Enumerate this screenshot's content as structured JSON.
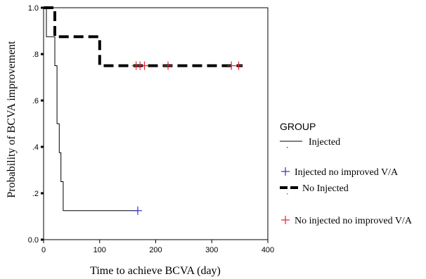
{
  "chart_data": {
    "type": "line",
    "step": true,
    "title": "",
    "xlabel": "Time to achieve BCVA (day)",
    "ylabel": "Probability of  BCVA improvement",
    "xlim": [
      0,
      400
    ],
    "ylim": [
      0,
      1.0
    ],
    "x_ticks": [
      0,
      100,
      200,
      300,
      400
    ],
    "x_tick_labels": [
      "0",
      "100",
      "200",
      "300",
      "400"
    ],
    "y_ticks": [
      0,
      0.2,
      0.4,
      0.6,
      0.8,
      1.0
    ],
    "y_tick_labels": [
      "0.0",
      ".2",
      ".4",
      ".6",
      ".8",
      "1.0"
    ],
    "grid": false,
    "legend_position": "right",
    "legend_title": "GROUP",
    "series": [
      {
        "name": "Injected",
        "style": "thin-solid",
        "color": "#000000",
        "points": [
          [
            0,
            1.0
          ],
          [
            5,
            1.0
          ],
          [
            5,
            0.875
          ],
          [
            20,
            0.875
          ],
          [
            20,
            0.75
          ],
          [
            24,
            0.75
          ],
          [
            24,
            0.5
          ],
          [
            28,
            0.5
          ],
          [
            28,
            0.375
          ],
          [
            31,
            0.375
          ],
          [
            31,
            0.25
          ],
          [
            35,
            0.25
          ],
          [
            35,
            0.125
          ],
          [
            168,
            0.125
          ]
        ]
      },
      {
        "name": "No Injected",
        "style": "thick-dashed",
        "color": "#000000",
        "points": [
          [
            0,
            1.0
          ],
          [
            20,
            1.0
          ],
          [
            20,
            0.875
          ],
          [
            100,
            0.875
          ],
          [
            100,
            0.75
          ],
          [
            355,
            0.75
          ]
        ]
      }
    ],
    "censor_series": [
      {
        "name": "Injected no improved V/A",
        "marker": "plus",
        "color": "#3333cc",
        "points": [
          [
            168,
            0.125
          ]
        ]
      },
      {
        "name": "No injected no improved V/A",
        "marker": "plus",
        "color": "#e8202a",
        "points": [
          [
            165,
            0.75
          ],
          [
            172,
            0.75
          ],
          [
            180,
            0.75
          ],
          [
            222,
            0.75
          ],
          [
            335,
            0.75
          ],
          [
            348,
            0.75
          ]
        ]
      }
    ],
    "legend_entries": [
      {
        "label": "Injected",
        "kind": "line",
        "style": "thin-solid",
        "color": "#000000",
        "swatch_color": "#d4145a"
      },
      {
        "label": "Injected no improved V/A",
        "kind": "marker",
        "color": "#3333cc"
      },
      {
        "label": "No Injected",
        "kind": "line",
        "style": "thick-dashed",
        "color": "#000000",
        "swatch_color": "#2eaa3a"
      },
      {
        "label": "No injected no improved V/A",
        "kind": "marker",
        "color": "#e8202a"
      }
    ]
  }
}
